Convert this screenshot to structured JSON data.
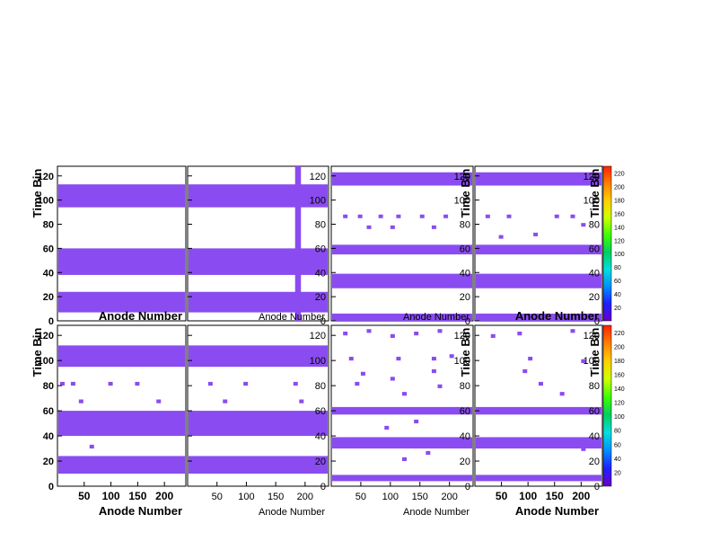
{
  "chart_data": [
    {
      "type": "heatmap",
      "position": "top-1",
      "ylabel": "Time Bin",
      "xlabel": "Anode Number",
      "xlim": [
        0,
        240
      ],
      "ylim": [
        0,
        128
      ],
      "y_ticks": [
        0,
        20,
        40,
        60,
        80,
        100,
        120
      ],
      "x_ticks": [],
      "colorbar": false,
      "bands": [
        [
          7,
          24
        ],
        [
          38,
          60
        ],
        [
          94,
          113
        ]
      ]
    },
    {
      "type": "heatmap",
      "position": "top-2",
      "ylabel": "",
      "xlabel": "Anode Number",
      "xlim": [
        0,
        240
      ],
      "ylim": [
        0,
        128
      ],
      "y_ticks": [
        0,
        20,
        40,
        60,
        80,
        100,
        120
      ],
      "x_ticks": [],
      "colorbar": false,
      "bands": [
        [
          7,
          24
        ],
        [
          38,
          60
        ],
        [
          94,
          113
        ]
      ],
      "vertical_band": [
        183,
        193
      ]
    },
    {
      "type": "heatmap",
      "position": "top-3",
      "ylabel": "Time Bin",
      "xlabel": "Anode Number",
      "xlim": [
        0,
        240
      ],
      "ylim": [
        0,
        128
      ],
      "y_ticks": [
        0,
        20,
        40,
        60,
        80,
        100,
        120
      ],
      "x_ticks": [],
      "colorbar": false,
      "bands": [
        [
          0,
          6
        ],
        [
          27,
          39
        ],
        [
          55,
          63
        ],
        [
          112,
          123
        ]
      ],
      "dashes": [
        [
          20,
          85
        ],
        [
          45,
          85
        ],
        [
          80,
          85
        ],
        [
          110,
          85
        ],
        [
          150,
          85
        ],
        [
          190,
          85
        ],
        [
          60,
          76
        ],
        [
          100,
          76
        ],
        [
          170,
          76
        ]
      ]
    },
    {
      "type": "heatmap",
      "position": "top-4",
      "ylabel": "Time Bin",
      "xlabel": "Anode Number",
      "xlim": [
        0,
        240
      ],
      "ylim": [
        0,
        128
      ],
      "y_ticks": [
        0,
        20,
        40,
        60,
        80,
        100,
        120
      ],
      "x_ticks": [],
      "colorbar": true,
      "colorbar_ticks": [
        20,
        40,
        60,
        80,
        100,
        120,
        140,
        160,
        180,
        200,
        220
      ],
      "bands": [
        [
          0,
          6
        ],
        [
          27,
          39
        ],
        [
          55,
          63
        ],
        [
          112,
          123
        ]
      ],
      "dashes": [
        [
          20,
          85
        ],
        [
          60,
          85
        ],
        [
          150,
          85
        ],
        [
          180,
          85
        ],
        [
          110,
          70
        ],
        [
          200,
          78
        ],
        [
          45,
          68
        ]
      ]
    },
    {
      "type": "heatmap",
      "position": "bottom-1",
      "ylabel": "Time Bin",
      "xlabel": "Anode Number",
      "xlim": [
        0,
        240
      ],
      "ylim": [
        0,
        128
      ],
      "y_ticks": [
        0,
        20,
        40,
        60,
        80,
        100,
        120
      ],
      "x_ticks": [
        50,
        100,
        150,
        200
      ],
      "colorbar": false,
      "bands": [
        [
          10,
          24
        ],
        [
          40,
          60
        ],
        [
          95,
          112
        ]
      ],
      "dashes": [
        [
          5,
          80
        ],
        [
          25,
          80
        ],
        [
          95,
          80
        ],
        [
          145,
          80
        ],
        [
          40,
          66
        ],
        [
          185,
          66
        ],
        [
          60,
          30
        ]
      ]
    },
    {
      "type": "heatmap",
      "position": "bottom-2",
      "ylabel": "",
      "xlabel": "Anode Number",
      "xlim": [
        0,
        240
      ],
      "ylim": [
        0,
        128
      ],
      "y_ticks": [
        0,
        20,
        40,
        60,
        80,
        100,
        120
      ],
      "x_ticks": [
        50,
        100,
        150,
        200
      ],
      "colorbar": false,
      "bands": [
        [
          10,
          24
        ],
        [
          40,
          60
        ],
        [
          95,
          112
        ]
      ],
      "dashes": [
        [
          35,
          80
        ],
        [
          95,
          80
        ],
        [
          180,
          80
        ],
        [
          60,
          66
        ],
        [
          190,
          66
        ]
      ]
    },
    {
      "type": "heatmap",
      "position": "bottom-3",
      "ylabel": "Time Bin",
      "xlabel": "Anode Number",
      "xlim": [
        0,
        240
      ],
      "ylim": [
        0,
        128
      ],
      "y_ticks": [
        0,
        20,
        40,
        60,
        80,
        100,
        120
      ],
      "x_ticks": [
        50,
        100,
        150,
        200
      ],
      "colorbar": false,
      "bands": [
        [
          4,
          9
        ],
        [
          30,
          39
        ],
        [
          57,
          63
        ]
      ],
      "dashes": [
        [
          20,
          120
        ],
        [
          60,
          122
        ],
        [
          100,
          118
        ],
        [
          140,
          120
        ],
        [
          180,
          122
        ],
        [
          30,
          100
        ],
        [
          110,
          100
        ],
        [
          170,
          100
        ],
        [
          200,
          102
        ],
        [
          50,
          88
        ],
        [
          100,
          84
        ],
        [
          170,
          90
        ],
        [
          40,
          80
        ],
        [
          120,
          72
        ],
        [
          180,
          78
        ],
        [
          140,
          50
        ],
        [
          90,
          45
        ],
        [
          160,
          25
        ],
        [
          120,
          20
        ]
      ]
    },
    {
      "type": "heatmap",
      "position": "bottom-4",
      "ylabel": "Time Bin",
      "xlabel": "Anode Number",
      "xlim": [
        0,
        240
      ],
      "ylim": [
        0,
        128
      ],
      "y_ticks": [
        0,
        20,
        40,
        60,
        80,
        100,
        120
      ],
      "x_ticks": [
        50,
        100,
        150,
        200
      ],
      "colorbar": true,
      "colorbar_ticks": [
        20,
        40,
        60,
        80,
        100,
        120,
        140,
        160,
        180,
        200,
        220
      ],
      "bands": [
        [
          4,
          9
        ],
        [
          30,
          39
        ],
        [
          57,
          63
        ]
      ],
      "dashes": [
        [
          30,
          118
        ],
        [
          80,
          120
        ],
        [
          180,
          122
        ],
        [
          90,
          90
        ],
        [
          100,
          100
        ],
        [
          200,
          98
        ],
        [
          120,
          80
        ],
        [
          160,
          72
        ],
        [
          40,
          30
        ],
        [
          80,
          35
        ],
        [
          200,
          28
        ]
      ]
    }
  ],
  "colors": {
    "fill": "#8a4cf0",
    "frame": "#000000"
  },
  "colorbar_gradient": [
    "#6a00c8",
    "#2020ff",
    "#0090ff",
    "#00e0e0",
    "#00d060",
    "#40ff00",
    "#d0ff00",
    "#ffd000",
    "#ff8000",
    "#ff2000"
  ]
}
